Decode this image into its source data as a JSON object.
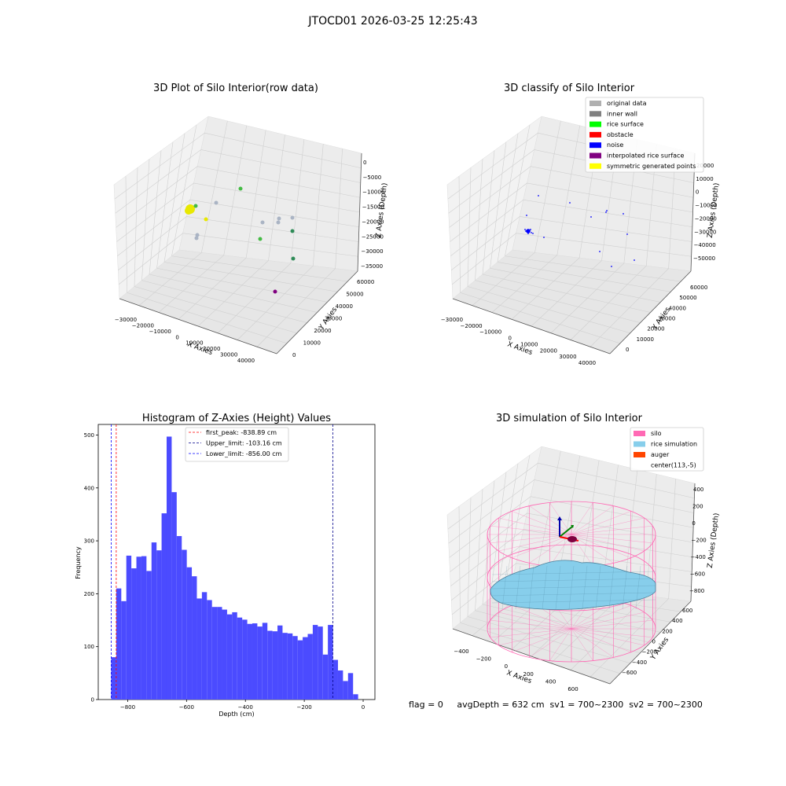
{
  "suptitle": "JTOCD01 2026-03-25 12:25:43",
  "colors": {
    "wall_gray": "#aab4c4",
    "teal_dot": "#2e8b57",
    "green_dot": "#44bb44",
    "yellow_dot": "#e8e800",
    "purple_dot": "#800080",
    "noise_blue": "#0000ff",
    "hist_bar": "#4b4bff",
    "silo_pink": "#ff69b4",
    "rice_blue": "#87ceeb",
    "auger_orange": "#ff4500"
  },
  "panel1": {
    "title": "3D Plot of Silo Interior(row data)",
    "xlabel": "X Axies",
    "ylabel": "Y Axies",
    "zlabel": "Z Axies (Depth)",
    "xticks": [
      "−30000",
      "−20000",
      "−10000",
      "0",
      "10000",
      "20000",
      "30000",
      "40000"
    ],
    "yticks": [
      "0",
      "10000",
      "20000",
      "30000",
      "40000",
      "50000",
      "60000"
    ],
    "zticks": [
      "0",
      "−5000",
      "−10000",
      "−15000",
      "−20000",
      "−25000",
      "−30000",
      "−35000"
    ]
  },
  "panel2": {
    "title": "3D classify of Silo Interior",
    "xlabel": "X Axies",
    "ylabel": "Y Axies",
    "zlabel": "Z Axies (Depth)",
    "xticks": [
      "−30000",
      "−20000",
      "−10000",
      "0",
      "10000",
      "20000",
      "30000",
      "40000"
    ],
    "yticks": [
      "0",
      "10000",
      "20000",
      "30000",
      "40000",
      "50000",
      "60000"
    ],
    "zticks": [
      "20000",
      "10000",
      "0",
      "−10000",
      "−20000",
      "−30000",
      "−40000",
      "−50000"
    ],
    "legend": [
      {
        "label": "original data",
        "color": "#b0b0b0"
      },
      {
        "label": "inner wall",
        "color": "#808080"
      },
      {
        "label": "rice surface",
        "color": "#00ff00"
      },
      {
        "label": "obstacle",
        "color": "#ff0000"
      },
      {
        "label": "noise",
        "color": "#0000ff"
      },
      {
        "label": "interpolated rice surface",
        "color": "#800080"
      },
      {
        "label": "symmetric generated points",
        "color": "#ffff00"
      }
    ]
  },
  "panel4": {
    "title": "3D simulation of Silo Interior",
    "xlabel": "X Axies",
    "ylabel": "Y Axies",
    "zlabel": "Z Axies (Depth)",
    "xticks": [
      "−400",
      "−200",
      "0",
      "200",
      "400",
      "600"
    ],
    "yticks": [
      "−600",
      "−400",
      "−200",
      "0",
      "200",
      "400",
      "600"
    ],
    "zticks": [
      "400",
      "200",
      "0",
      "−200",
      "−400",
      "−600",
      "−800"
    ],
    "legend": [
      {
        "label": "silo",
        "color": "#ff69b4"
      },
      {
        "label": "rice simulation",
        "color": "#87ceeb"
      },
      {
        "label": "auger",
        "color": "#ff4500"
      },
      {
        "label": "center(113,-5)",
        "color": ""
      }
    ],
    "status": "flag = 0     avgDepth = 632 cm  sv1 = 700~2300  sv2 = 700~2300"
  },
  "chart_data": [
    {
      "type": "scatter",
      "title": "3D Plot of Silo Interior(row data)",
      "xlabel": "X Axies",
      "ylabel": "Y Axies",
      "zlabel": "Z Axies (Depth)",
      "xlim": [
        -35000,
        45000
      ],
      "ylim": [
        0,
        65000
      ],
      "zlim": [
        -37000,
        2000
      ]
    },
    {
      "type": "scatter",
      "title": "3D classify of Silo Interior",
      "xlabel": "X Axies",
      "ylabel": "Y Axies",
      "zlabel": "Z Axies (Depth)",
      "xlim": [
        -35000,
        45000
      ],
      "ylim": [
        0,
        65000
      ],
      "zlim": [
        -55000,
        20000
      ],
      "series": [
        {
          "name": "original data"
        },
        {
          "name": "inner wall"
        },
        {
          "name": "rice surface"
        },
        {
          "name": "obstacle"
        },
        {
          "name": "noise"
        },
        {
          "name": "interpolated rice surface"
        },
        {
          "name": "symmetric generated points"
        }
      ]
    },
    {
      "type": "bar",
      "title": "Histogram of Z-Axies (Height) Values",
      "xlabel": "Depth (cm)",
      "ylabel": "Frequency",
      "xlim": [
        -900,
        40
      ],
      "ylim": [
        0,
        520
      ],
      "xticks": [
        -800,
        -600,
        -400,
        -200,
        0
      ],
      "yticks": [
        0,
        100,
        200,
        300,
        400,
        500
      ],
      "bin_start": -856,
      "bin_width": 17.12,
      "values": [
        80,
        210,
        186,
        272,
        248,
        270,
        271,
        243,
        297,
        282,
        352,
        497,
        392,
        309,
        283,
        250,
        233,
        191,
        203,
        188,
        175,
        175,
        170,
        161,
        165,
        155,
        151,
        143,
        144,
        138,
        145,
        130,
        129,
        140,
        126,
        125,
        120,
        112,
        118,
        124,
        141,
        138,
        85,
        141,
        75,
        55,
        35,
        50,
        10
      ],
      "lines": [
        {
          "name": "first_peak: -838.89 cm",
          "x": -838.89,
          "color": "#ff0000"
        },
        {
          "name": "Upper_limit: -103.16 cm",
          "x": -103.16,
          "color": "#00008b"
        },
        {
          "name": "Lower_limit: -856.00 cm",
          "x": -856.0,
          "color": "#0000ff"
        }
      ]
    },
    {
      "type": "surface",
      "title": "3D simulation of Silo Interior",
      "xlabel": "X Axies",
      "ylabel": "Y Axies",
      "zlabel": "Z Axies (Depth)",
      "xlim": [
        -500,
        700
      ],
      "ylim": [
        -700,
        700
      ],
      "zlim": [
        -950,
        450
      ],
      "series": [
        {
          "name": "silo"
        },
        {
          "name": "rice simulation"
        },
        {
          "name": "auger"
        },
        {
          "name": "center(113,-5)"
        }
      ],
      "avgDepth_cm": 632
    }
  ]
}
